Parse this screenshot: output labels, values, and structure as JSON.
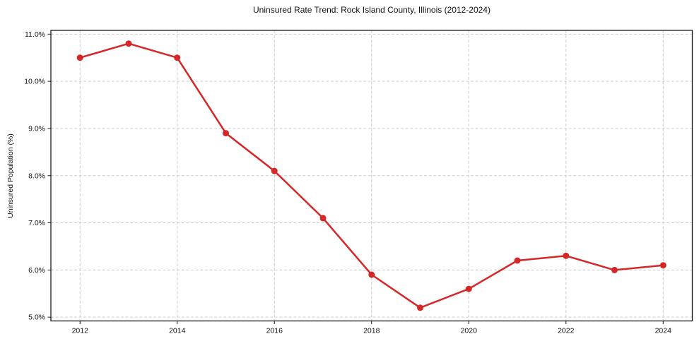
{
  "chart_data": {
    "type": "line",
    "title": "Uninsured Rate Trend: Rock Island County, Illinois (2012-2024)",
    "xlabel": "",
    "ylabel": "Uninsured Population (%)",
    "series": [
      {
        "name": "Uninsured rate",
        "x": [
          2012,
          2013,
          2014,
          2015,
          2016,
          2017,
          2018,
          2019,
          2020,
          2021,
          2022,
          2023,
          2024
        ],
        "values": [
          10.5,
          10.8,
          10.5,
          8.9,
          8.1,
          7.1,
          5.9,
          5.2,
          5.6,
          6.2,
          6.3,
          6.0,
          6.1
        ]
      }
    ],
    "xlim": [
      2011.4,
      2024.6
    ],
    "ylim": [
      4.92,
      11.08
    ],
    "xticks": {
      "values": [
        2012,
        2014,
        2016,
        2018,
        2020,
        2022,
        2024
      ],
      "labels": [
        "2012",
        "2014",
        "2016",
        "2018",
        "2020",
        "2022",
        "2024"
      ]
    },
    "yticks": {
      "values": [
        5,
        6,
        7,
        8,
        9,
        10,
        11
      ],
      "labels": [
        "5.0%",
        "6.0%",
        "7.0%",
        "8.0%",
        "9.0%",
        "10.0%",
        "11.0%"
      ]
    },
    "grid": true,
    "grid_style": "dashed",
    "legend": false,
    "marker": "circle",
    "colors": {
      "line": "#d62728",
      "marker": "#d62728",
      "grid": "#cccccc",
      "spine": "#1a1a1a",
      "text": "#111111",
      "background": "#ffffff"
    }
  }
}
